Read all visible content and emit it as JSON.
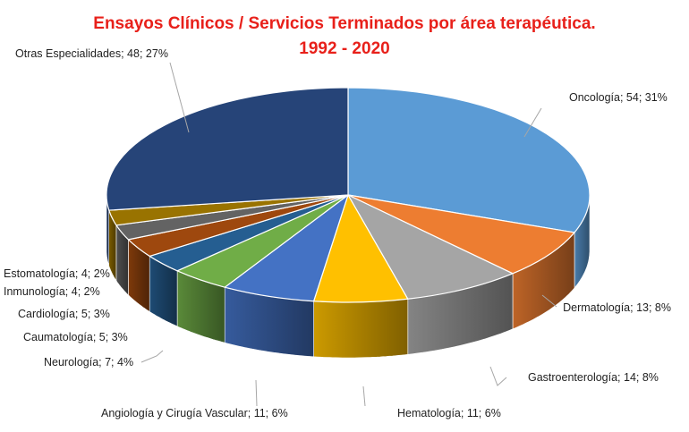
{
  "chart_data": {
    "type": "pie",
    "style": "3d",
    "title": "Ensayos Clínicos / Servicios Terminados por área terapéutica.",
    "subtitle": "1992 - 2020",
    "slices": [
      {
        "label": "Oncología",
        "value": 54,
        "percent": "31%",
        "text": "Oncología; 54; 31%",
        "color": "#5b9bd5"
      },
      {
        "label": "Dermatología",
        "value": 13,
        "percent": "8%",
        "text": "Dermatología; 13; 8%",
        "color": "#ed7d31"
      },
      {
        "label": "Gastroenterología",
        "value": 14,
        "percent": "8%",
        "text": "Gastroenterología; 14; 8%",
        "color": "#a5a5a5"
      },
      {
        "label": "Hematología",
        "value": 11,
        "percent": "6%",
        "text": "Hematología; 11; 6%",
        "color": "#ffc000"
      },
      {
        "label": "Angiología y Cirugía Vascular",
        "value": 11,
        "percent": "6%",
        "text": "Angiología y Cirugía Vascular; 11; 6%",
        "color": "#4472c4"
      },
      {
        "label": "Neurología",
        "value": 7,
        "percent": "4%",
        "text": "Neurología; 7; 4%",
        "color": "#70ad47"
      },
      {
        "label": "Caumatología",
        "value": 5,
        "percent": "3%",
        "text": "Caumatología; 5; 3%",
        "color": "#255e91"
      },
      {
        "label": "Cardiología",
        "value": 5,
        "percent": "3%",
        "text": "Cardiología; 5; 3%",
        "color": "#9e480e"
      },
      {
        "label": "Inmunología",
        "value": 4,
        "percent": "2%",
        "text": "Inmunología; 4; 2%",
        "color": "#636363"
      },
      {
        "label": "Estomatología",
        "value": 4,
        "percent": "2%",
        "text": "Estomatología; 4; 2%",
        "color": "#997300"
      },
      {
        "label": "Otras Especialidades",
        "value": 48,
        "percent": "27%",
        "text": "Otras Especialidades; 48; 27%",
        "color": "#264478"
      }
    ]
  }
}
